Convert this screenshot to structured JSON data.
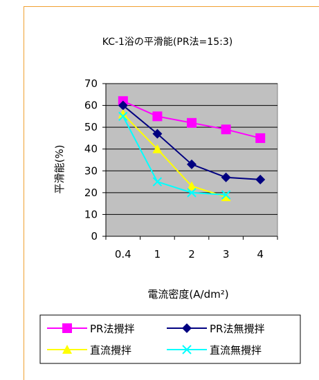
{
  "chart_data": {
    "type": "line",
    "title": "KC-1浴の平滑能(PR法=15:3)",
    "xlabel": "電流密度(A/dm²)",
    "ylabel": "平滑能(%)",
    "categories": [
      "0.4",
      "1",
      "2",
      "3",
      "4"
    ],
    "ylim": [
      0,
      70
    ],
    "yticks": [
      "0",
      "10",
      "20",
      "30",
      "40",
      "50",
      "60",
      "70"
    ],
    "grid": true,
    "plot_background": "#c0c0c0",
    "legend_position": "bottom",
    "series": [
      {
        "name": "PR法攪拌",
        "values": [
          62,
          55,
          52,
          49,
          45
        ],
        "color": "#ff00ff",
        "marker": "square"
      },
      {
        "name": "PR法無攪拌",
        "values": [
          60,
          47,
          33,
          27,
          26
        ],
        "color": "#000080",
        "marker": "diamond"
      },
      {
        "name": "直流攪拌",
        "values": [
          56,
          40,
          23,
          18,
          null
        ],
        "color": "#ffff00",
        "marker": "triangle"
      },
      {
        "name": "直流無攪拌",
        "values": [
          55,
          25,
          20,
          19,
          null
        ],
        "color": "#00ffff",
        "marker": "x"
      }
    ]
  },
  "colors": {
    "frame_border": "#f0a030",
    "plot_background": "#c0c0c0",
    "gridline": "#000000"
  }
}
